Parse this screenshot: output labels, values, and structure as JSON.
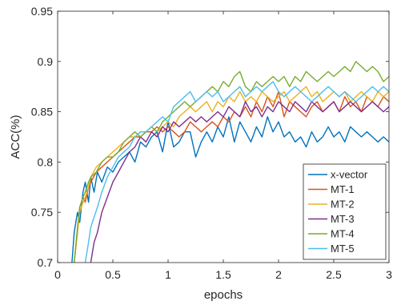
{
  "chart_data": {
    "type": "line",
    "title": "",
    "xlabel": "epochs",
    "ylabel": "ACC(%)",
    "xlim": [
      0,
      3
    ],
    "ylim": [
      0.7,
      0.95
    ],
    "xticks": [
      0,
      0.5,
      1,
      1.5,
      2,
      2.5,
      3
    ],
    "xtick_labels": [
      "0",
      "0.5",
      "1",
      "1.5",
      "2",
      "2.5",
      "3"
    ],
    "yticks": [
      0.7,
      0.75,
      0.8,
      0.85,
      0.9,
      0.95
    ],
    "ytick_labels": [
      "0.7",
      "0.75",
      "0.8",
      "0.85",
      "0.9",
      "0.95"
    ],
    "grid": false,
    "legend_position": "bottom-right",
    "series": [
      {
        "name": "x-vector",
        "color": "#0072BD",
        "x": [
          0.13,
          0.15,
          0.18,
          0.2,
          0.23,
          0.25,
          0.28,
          0.3,
          0.33,
          0.36,
          0.4,
          0.45,
          0.5,
          0.55,
          0.6,
          0.65,
          0.7,
          0.75,
          0.8,
          0.85,
          0.9,
          0.95,
          1.0,
          1.05,
          1.1,
          1.15,
          1.2,
          1.25,
          1.3,
          1.35,
          1.4,
          1.45,
          1.5,
          1.55,
          1.6,
          1.65,
          1.7,
          1.75,
          1.8,
          1.85,
          1.9,
          1.95,
          2.0,
          2.05,
          2.1,
          2.15,
          2.2,
          2.25,
          2.3,
          2.35,
          2.4,
          2.45,
          2.5,
          2.55,
          2.6,
          2.65,
          2.7,
          2.75,
          2.8,
          2.85,
          2.9,
          2.95,
          3.0
        ],
        "y": [
          0.7,
          0.73,
          0.75,
          0.74,
          0.77,
          0.78,
          0.76,
          0.785,
          0.77,
          0.79,
          0.78,
          0.795,
          0.79,
          0.8,
          0.805,
          0.81,
          0.8,
          0.82,
          0.815,
          0.825,
          0.83,
          0.81,
          0.84,
          0.815,
          0.82,
          0.83,
          0.83,
          0.805,
          0.82,
          0.83,
          0.82,
          0.835,
          0.825,
          0.845,
          0.82,
          0.84,
          0.83,
          0.82,
          0.835,
          0.825,
          0.845,
          0.83,
          0.84,
          0.825,
          0.83,
          0.82,
          0.825,
          0.815,
          0.83,
          0.82,
          0.825,
          0.835,
          0.825,
          0.83,
          0.82,
          0.835,
          0.83,
          0.825,
          0.83,
          0.825,
          0.82,
          0.825,
          0.82
        ]
      },
      {
        "name": "MT-1",
        "color": "#D95319",
        "x": [
          0.15,
          0.18,
          0.2,
          0.23,
          0.25,
          0.28,
          0.3,
          0.35,
          0.4,
          0.45,
          0.5,
          0.55,
          0.6,
          0.65,
          0.7,
          0.75,
          0.8,
          0.85,
          0.9,
          0.95,
          1.0,
          1.05,
          1.1,
          1.15,
          1.2,
          1.25,
          1.3,
          1.35,
          1.4,
          1.45,
          1.5,
          1.55,
          1.6,
          1.65,
          1.7,
          1.75,
          1.8,
          1.85,
          1.9,
          1.95,
          2.0,
          2.05,
          2.1,
          2.15,
          2.2,
          2.25,
          2.3,
          2.35,
          2.4,
          2.45,
          2.5,
          2.55,
          2.6,
          2.65,
          2.7,
          2.75,
          2.8,
          2.85,
          2.9,
          2.95,
          3.0
        ],
        "y": [
          0.7,
          0.73,
          0.755,
          0.765,
          0.76,
          0.775,
          0.78,
          0.79,
          0.795,
          0.8,
          0.805,
          0.81,
          0.815,
          0.82,
          0.825,
          0.825,
          0.83,
          0.83,
          0.835,
          0.83,
          0.835,
          0.83,
          0.825,
          0.83,
          0.84,
          0.835,
          0.83,
          0.835,
          0.84,
          0.835,
          0.845,
          0.84,
          0.85,
          0.845,
          0.855,
          0.845,
          0.86,
          0.85,
          0.865,
          0.855,
          0.87,
          0.845,
          0.86,
          0.855,
          0.85,
          0.845,
          0.855,
          0.86,
          0.85,
          0.855,
          0.86,
          0.85,
          0.865,
          0.855,
          0.86,
          0.85,
          0.865,
          0.86,
          0.855,
          0.865,
          0.86
        ]
      },
      {
        "name": "MT-2",
        "color": "#EDB120",
        "x": [
          0.15,
          0.18,
          0.2,
          0.23,
          0.25,
          0.28,
          0.3,
          0.35,
          0.4,
          0.45,
          0.5,
          0.55,
          0.6,
          0.65,
          0.7,
          0.75,
          0.8,
          0.85,
          0.9,
          0.95,
          1.0,
          1.05,
          1.1,
          1.15,
          1.2,
          1.25,
          1.3,
          1.35,
          1.4,
          1.45,
          1.5,
          1.55,
          1.6,
          1.65,
          1.7,
          1.75,
          1.8,
          1.85,
          1.9,
          1.95,
          2.0,
          2.05,
          2.1,
          2.15,
          2.2,
          2.25,
          2.3,
          2.35,
          2.4,
          2.45,
          2.5,
          2.55,
          2.6,
          2.65,
          2.7,
          2.75,
          2.8,
          2.85,
          2.9,
          2.95,
          3.0
        ],
        "y": [
          0.7,
          0.73,
          0.75,
          0.76,
          0.765,
          0.775,
          0.785,
          0.795,
          0.8,
          0.805,
          0.81,
          0.815,
          0.82,
          0.825,
          0.825,
          0.83,
          0.83,
          0.835,
          0.83,
          0.835,
          0.84,
          0.835,
          0.845,
          0.85,
          0.855,
          0.85,
          0.855,
          0.86,
          0.85,
          0.86,
          0.855,
          0.865,
          0.86,
          0.87,
          0.86,
          0.865,
          0.86,
          0.87,
          0.865,
          0.86,
          0.865,
          0.87,
          0.86,
          0.865,
          0.87,
          0.875,
          0.865,
          0.87,
          0.86,
          0.865,
          0.87,
          0.865,
          0.87,
          0.86,
          0.865,
          0.87,
          0.865,
          0.86,
          0.87,
          0.865,
          0.87
        ]
      },
      {
        "name": "MT-3",
        "color": "#7E2F8E",
        "x": [
          0.3,
          0.33,
          0.36,
          0.4,
          0.45,
          0.5,
          0.55,
          0.6,
          0.65,
          0.7,
          0.75,
          0.8,
          0.85,
          0.9,
          0.95,
          1.0,
          1.05,
          1.1,
          1.15,
          1.2,
          1.25,
          1.3,
          1.35,
          1.4,
          1.45,
          1.5,
          1.55,
          1.6,
          1.65,
          1.7,
          1.75,
          1.8,
          1.85,
          1.9,
          1.95,
          2.0,
          2.05,
          2.1,
          2.15,
          2.2,
          2.25,
          2.3,
          2.35,
          2.4,
          2.45,
          2.5,
          2.55,
          2.6,
          2.65,
          2.7,
          2.75,
          2.8,
          2.85,
          2.9,
          2.95,
          3.0
        ],
        "y": [
          0.7,
          0.72,
          0.73,
          0.75,
          0.765,
          0.78,
          0.79,
          0.8,
          0.81,
          0.815,
          0.825,
          0.82,
          0.83,
          0.825,
          0.835,
          0.83,
          0.84,
          0.835,
          0.84,
          0.845,
          0.84,
          0.845,
          0.84,
          0.845,
          0.85,
          0.845,
          0.855,
          0.85,
          0.845,
          0.86,
          0.85,
          0.855,
          0.845,
          0.855,
          0.85,
          0.86,
          0.855,
          0.85,
          0.86,
          0.855,
          0.85,
          0.86,
          0.855,
          0.85,
          0.855,
          0.86,
          0.85,
          0.855,
          0.86,
          0.855,
          0.85,
          0.855,
          0.86,
          0.855,
          0.85,
          0.855
        ]
      },
      {
        "name": "MT-4",
        "color": "#77AC30",
        "x": [
          0.15,
          0.18,
          0.2,
          0.23,
          0.25,
          0.28,
          0.3,
          0.35,
          0.4,
          0.45,
          0.5,
          0.55,
          0.6,
          0.65,
          0.7,
          0.75,
          0.8,
          0.85,
          0.9,
          0.95,
          1.0,
          1.05,
          1.1,
          1.15,
          1.2,
          1.25,
          1.3,
          1.35,
          1.4,
          1.45,
          1.5,
          1.55,
          1.6,
          1.65,
          1.7,
          1.75,
          1.8,
          1.85,
          1.9,
          1.95,
          2.0,
          2.05,
          2.1,
          2.15,
          2.2,
          2.25,
          2.3,
          2.35,
          2.4,
          2.45,
          2.5,
          2.55,
          2.6,
          2.65,
          2.7,
          2.75,
          2.8,
          2.85,
          2.9,
          2.95,
          3.0
        ],
        "y": [
          0.7,
          0.735,
          0.755,
          0.765,
          0.77,
          0.78,
          0.785,
          0.79,
          0.8,
          0.805,
          0.805,
          0.81,
          0.82,
          0.825,
          0.83,
          0.825,
          0.83,
          0.835,
          0.83,
          0.84,
          0.845,
          0.85,
          0.855,
          0.86,
          0.855,
          0.86,
          0.865,
          0.87,
          0.875,
          0.87,
          0.88,
          0.875,
          0.885,
          0.89,
          0.875,
          0.87,
          0.88,
          0.875,
          0.88,
          0.885,
          0.88,
          0.885,
          0.875,
          0.885,
          0.88,
          0.89,
          0.885,
          0.88,
          0.885,
          0.89,
          0.885,
          0.89,
          0.895,
          0.89,
          0.9,
          0.895,
          0.89,
          0.895,
          0.89,
          0.88,
          0.885
        ]
      },
      {
        "name": "MT-5",
        "color": "#4DBEEE",
        "x": [
          0.25,
          0.28,
          0.3,
          0.33,
          0.36,
          0.4,
          0.45,
          0.5,
          0.55,
          0.6,
          0.65,
          0.7,
          0.75,
          0.8,
          0.85,
          0.9,
          0.95,
          1.0,
          1.05,
          1.1,
          1.15,
          1.2,
          1.25,
          1.3,
          1.35,
          1.4,
          1.45,
          1.5,
          1.55,
          1.6,
          1.65,
          1.7,
          1.75,
          1.8,
          1.85,
          1.9,
          1.95,
          2.0,
          2.05,
          2.1,
          2.15,
          2.2,
          2.25,
          2.3,
          2.35,
          2.4,
          2.45,
          2.5,
          2.55,
          2.6,
          2.65,
          2.7,
          2.75,
          2.8,
          2.85,
          2.9,
          2.95,
          3.0
        ],
        "y": [
          0.7,
          0.72,
          0.735,
          0.745,
          0.755,
          0.77,
          0.785,
          0.795,
          0.805,
          0.81,
          0.815,
          0.825,
          0.83,
          0.83,
          0.835,
          0.84,
          0.845,
          0.84,
          0.855,
          0.86,
          0.865,
          0.87,
          0.86,
          0.865,
          0.87,
          0.865,
          0.87,
          0.86,
          0.865,
          0.87,
          0.875,
          0.865,
          0.87,
          0.875,
          0.87,
          0.875,
          0.88,
          0.87,
          0.865,
          0.87,
          0.875,
          0.87,
          0.865,
          0.86,
          0.865,
          0.87,
          0.875,
          0.87,
          0.865,
          0.87,
          0.865,
          0.86,
          0.865,
          0.87,
          0.875,
          0.87,
          0.875,
          0.87
        ]
      }
    ]
  }
}
